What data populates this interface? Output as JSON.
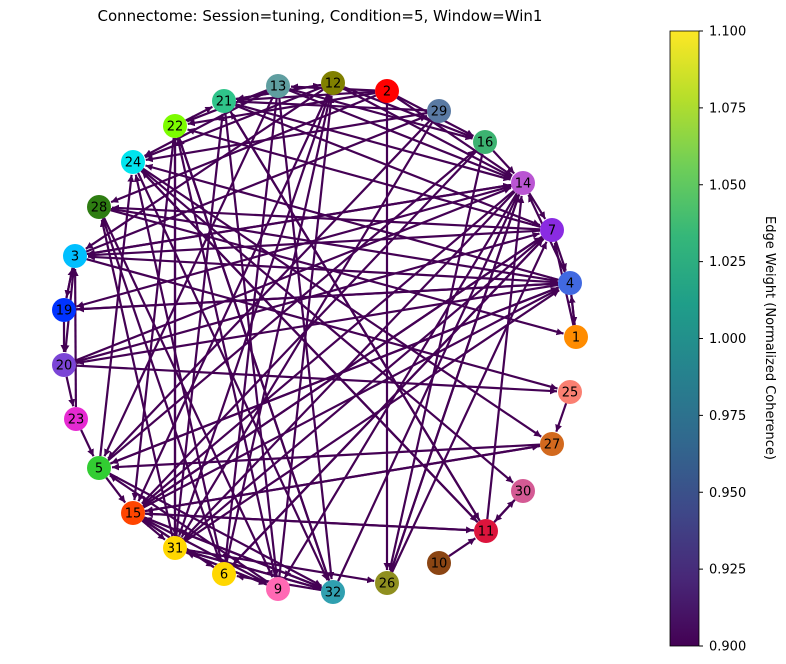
{
  "title": "Connectome: Session=tuning, Condition=5, Window=Win1",
  "edge_color": "#440154",
  "colorbar": {
    "label": "Edge Weight (Normalized Coherence)",
    "ticks": [
      "1.100",
      "1.075",
      "1.050",
      "1.025",
      "1.000",
      "0.975",
      "0.950",
      "0.925",
      "0.900"
    ],
    "stops": [
      "#fde725",
      "#b5de2b",
      "#6ece58",
      "#35b779",
      "#1f9e89",
      "#26828e",
      "#31688e",
      "#3e4989",
      "#482878",
      "#440154"
    ]
  },
  "nodes": [
    {
      "id": "1",
      "color": "#ff8c00"
    },
    {
      "id": "2",
      "color": "#ff0000"
    },
    {
      "id": "3",
      "color": "#00bfff"
    },
    {
      "id": "4",
      "color": "#4169e1"
    },
    {
      "id": "5",
      "color": "#32cd32"
    },
    {
      "id": "6",
      "color": "#ffd700"
    },
    {
      "id": "7",
      "color": "#8a2be2"
    },
    {
      "id": "9",
      "color": "#ff69b4"
    },
    {
      "id": "10",
      "color": "#8b4513"
    },
    {
      "id": "11",
      "color": "#dc143c"
    },
    {
      "id": "12",
      "color": "#808000"
    },
    {
      "id": "13",
      "color": "#5f9ea0"
    },
    {
      "id": "14",
      "color": "#ba55d3"
    },
    {
      "id": "15",
      "color": "#ff4500"
    },
    {
      "id": "16",
      "color": "#3cb371"
    },
    {
      "id": "19",
      "color": "#0033ff"
    },
    {
      "id": "20",
      "color": "#7b45d6"
    },
    {
      "id": "21",
      "color": "#2fc48a"
    },
    {
      "id": "22",
      "color": "#7cfc00"
    },
    {
      "id": "23",
      "color": "#e62ad2"
    },
    {
      "id": "24",
      "color": "#00e5ee"
    },
    {
      "id": "25",
      "color": "#fa8072"
    },
    {
      "id": "26",
      "color": "#8f8f1f"
    },
    {
      "id": "27",
      "color": "#d2691e"
    },
    {
      "id": "28",
      "color": "#2e7d12"
    },
    {
      "id": "29",
      "color": "#5a7aa3"
    },
    {
      "id": "30",
      "color": "#d45a94"
    },
    {
      "id": "31",
      "color": "#ffd700"
    },
    {
      "id": "32",
      "color": "#30a0b0"
    }
  ],
  "edges": [
    [
      "2",
      "16"
    ],
    [
      "2",
      "14"
    ],
    [
      "2",
      "13"
    ],
    [
      "2",
      "21"
    ],
    [
      "2",
      "22"
    ],
    [
      "2",
      "28"
    ],
    [
      "2",
      "26"
    ],
    [
      "12",
      "24"
    ],
    [
      "12",
      "21"
    ],
    [
      "12",
      "14"
    ],
    [
      "12",
      "16"
    ],
    [
      "12",
      "15"
    ],
    [
      "12",
      "31"
    ],
    [
      "12",
      "3"
    ],
    [
      "13",
      "16"
    ],
    [
      "13",
      "14"
    ],
    [
      "13",
      "22"
    ],
    [
      "13",
      "24"
    ],
    [
      "13",
      "32"
    ],
    [
      "13",
      "5"
    ],
    [
      "13",
      "6"
    ],
    [
      "21",
      "14"
    ],
    [
      "21",
      "9"
    ],
    [
      "21",
      "11"
    ],
    [
      "21",
      "7"
    ],
    [
      "21",
      "12"
    ],
    [
      "29",
      "24"
    ],
    [
      "29",
      "21"
    ],
    [
      "29",
      "31"
    ],
    [
      "29",
      "5"
    ],
    [
      "16",
      "15"
    ],
    [
      "16",
      "14"
    ],
    [
      "16",
      "26"
    ],
    [
      "14",
      "3"
    ],
    [
      "14",
      "15"
    ],
    [
      "14",
      "31"
    ],
    [
      "14",
      "26"
    ],
    [
      "14",
      "9"
    ],
    [
      "14",
      "19"
    ],
    [
      "14",
      "7"
    ],
    [
      "7",
      "3"
    ],
    [
      "7",
      "28"
    ],
    [
      "7",
      "15"
    ],
    [
      "7",
      "31"
    ],
    [
      "7",
      "6"
    ],
    [
      "7",
      "22"
    ],
    [
      "7",
      "4"
    ],
    [
      "4",
      "3"
    ],
    [
      "4",
      "19"
    ],
    [
      "4",
      "20"
    ],
    [
      "4",
      "24"
    ],
    [
      "4",
      "5"
    ],
    [
      "4",
      "1"
    ],
    [
      "4",
      "14"
    ],
    [
      "1",
      "4"
    ],
    [
      "1",
      "7"
    ],
    [
      "25",
      "27"
    ],
    [
      "3",
      "25"
    ],
    [
      "20",
      "25"
    ],
    [
      "24",
      "27"
    ],
    [
      "27",
      "5"
    ],
    [
      "27",
      "15"
    ],
    [
      "30",
      "11"
    ],
    [
      "11",
      "30"
    ],
    [
      "10",
      "11"
    ],
    [
      "11",
      "21"
    ],
    [
      "11",
      "15"
    ],
    [
      "11",
      "24"
    ],
    [
      "11",
      "14"
    ],
    [
      "26",
      "7"
    ],
    [
      "26",
      "14"
    ],
    [
      "9",
      "12"
    ],
    [
      "9",
      "22"
    ],
    [
      "9",
      "31"
    ],
    [
      "9",
      "5"
    ],
    [
      "32",
      "22"
    ],
    [
      "32",
      "14"
    ],
    [
      "32",
      "15"
    ],
    [
      "32",
      "31"
    ],
    [
      "32",
      "6"
    ],
    [
      "6",
      "12"
    ],
    [
      "6",
      "24"
    ],
    [
      "6",
      "7"
    ],
    [
      "6",
      "15"
    ],
    [
      "31",
      "21"
    ],
    [
      "31",
      "22"
    ],
    [
      "31",
      "28"
    ],
    [
      "31",
      "4"
    ],
    [
      "31",
      "9"
    ],
    [
      "31",
      "32"
    ],
    [
      "31",
      "26"
    ],
    [
      "15",
      "4"
    ],
    [
      "15",
      "7"
    ],
    [
      "15",
      "31"
    ],
    [
      "15",
      "6"
    ],
    [
      "15",
      "9"
    ],
    [
      "15",
      "32"
    ],
    [
      "15",
      "11"
    ],
    [
      "15",
      "27"
    ],
    [
      "5",
      "4"
    ],
    [
      "5",
      "16"
    ],
    [
      "5",
      "15"
    ],
    [
      "5",
      "32"
    ],
    [
      "5",
      "24"
    ],
    [
      "23",
      "5"
    ],
    [
      "23",
      "3"
    ],
    [
      "20",
      "23"
    ],
    [
      "19",
      "20"
    ],
    [
      "19",
      "3"
    ],
    [
      "3",
      "19"
    ],
    [
      "3",
      "20"
    ],
    [
      "28",
      "1"
    ],
    [
      "28",
      "6"
    ],
    [
      "28",
      "4"
    ],
    [
      "28",
      "9"
    ],
    [
      "24",
      "30"
    ],
    [
      "24",
      "32"
    ],
    [
      "24",
      "11"
    ],
    [
      "22",
      "21"
    ],
    [
      "22",
      "32"
    ],
    [
      "22",
      "15"
    ],
    [
      "22",
      "31"
    ],
    [
      "3",
      "14"
    ],
    [
      "3",
      "29"
    ],
    [
      "20",
      "7"
    ],
    [
      "20",
      "14"
    ],
    [
      "19",
      "4"
    ]
  ]
}
